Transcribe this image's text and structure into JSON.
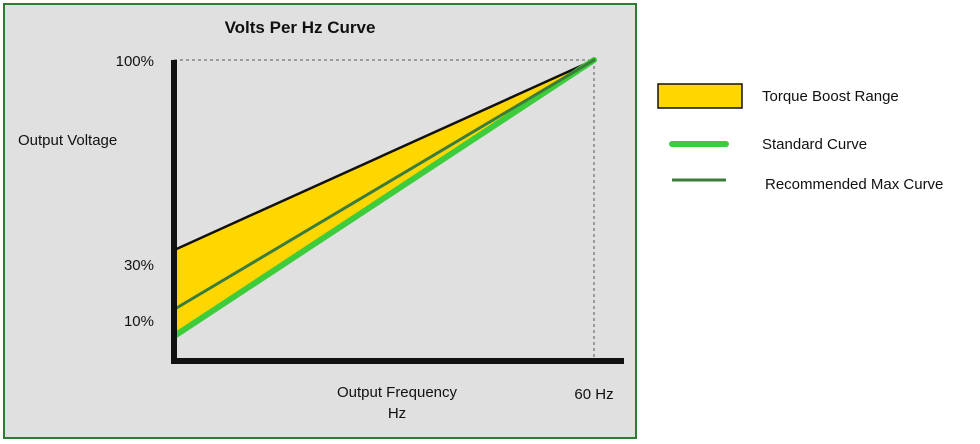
{
  "chart_data": {
    "type": "line",
    "title": "Volts Per Hz Curve",
    "xlabel_line1": "Output Frequency",
    "xlabel_line2": "Hz",
    "ylabel": "Output Voltage",
    "xlim": [
      0,
      60
    ],
    "ylim": [
      0,
      100
    ],
    "x_tick_labels": [
      {
        "value": 60,
        "label": "60 Hz"
      }
    ],
    "y_tick_labels": [
      {
        "value": 100,
        "label": "100%"
      },
      {
        "value": 30,
        "label": "30%"
      },
      {
        "value": 10,
        "label": "10%"
      }
    ],
    "series": [
      {
        "name": "Torque Boost Range",
        "kind": "area",
        "color": "#ffd700",
        "lower": [
          [
            0,
            7
          ],
          [
            60,
            100
          ]
        ],
        "upper": [
          [
            0,
            36
          ],
          [
            60,
            100
          ]
        ]
      },
      {
        "name": "Standard Curve",
        "kind": "line",
        "color": "#3dcc3d",
        "points": [
          [
            0,
            7
          ],
          [
            60,
            100
          ]
        ]
      },
      {
        "name": "Recommended Max Curve",
        "kind": "line",
        "color": "#3a7d3a",
        "points": [
          [
            0,
            16
          ],
          [
            60,
            100
          ]
        ]
      }
    ],
    "reference_lines": [
      {
        "type": "horizontal",
        "value": 100,
        "style": "dashed"
      },
      {
        "type": "vertical",
        "value": 60,
        "style": "dashed"
      }
    ],
    "legend_placement": "right",
    "plot_background": "#e0e0e0",
    "frame_color": "#2e7d32",
    "grid": false
  }
}
